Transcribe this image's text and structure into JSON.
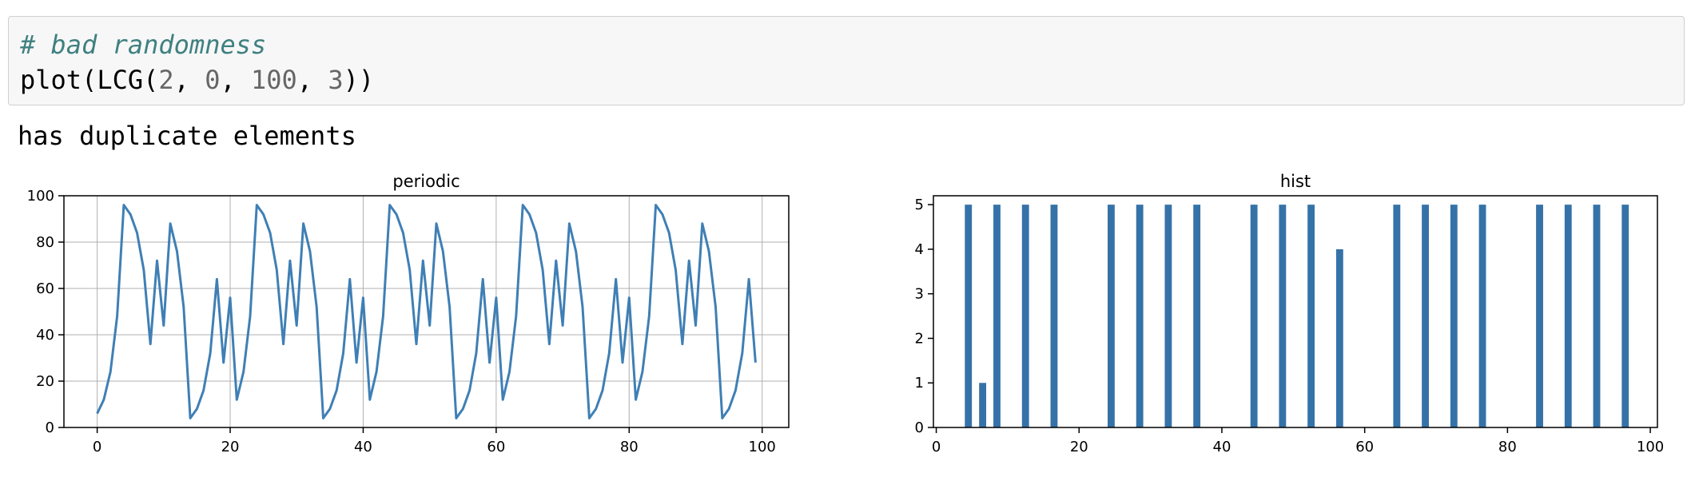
{
  "code": {
    "comment": "# bad randomness",
    "line2": {
      "func": "plot(LCG(",
      "a": "2",
      "sep1": ", ",
      "b": "0",
      "sep2": ", ",
      "c": "100",
      "sep3": ", ",
      "d": "3",
      "close": "))"
    }
  },
  "output": {
    "text": "has duplicate elements"
  },
  "colors": {
    "series": "#3f7fb5",
    "bar": "#3572a8",
    "grid": "#b0b0b0",
    "code_bg": "#f7f7f7",
    "comment": "#408080"
  },
  "chart_data": [
    {
      "type": "line",
      "title": "periodic",
      "xlabel": "",
      "ylabel": "",
      "xlim": [
        -5,
        104
      ],
      "ylim": [
        0,
        100
      ],
      "grid": true,
      "x_ticks": [
        0,
        20,
        40,
        60,
        80,
        100
      ],
      "y_ticks": [
        0,
        20,
        40,
        60,
        80,
        100
      ],
      "series": [
        {
          "x": [
            0,
            1,
            2,
            3,
            4,
            5,
            6,
            7,
            8,
            9,
            10,
            11,
            12,
            13,
            14,
            15,
            16,
            17,
            18,
            19,
            20,
            21,
            22,
            23,
            24,
            25,
            26,
            27,
            28,
            29,
            30,
            31,
            32,
            33,
            34,
            35,
            36,
            37,
            38,
            39,
            40,
            41,
            42,
            43,
            44,
            45,
            46,
            47,
            48,
            49,
            50,
            51,
            52,
            53,
            54,
            55,
            56,
            57,
            58,
            59,
            60,
            61,
            62,
            63,
            64,
            65,
            66,
            67,
            68,
            69,
            70,
            71,
            72,
            73,
            74,
            75,
            76,
            77,
            78,
            79,
            80,
            81,
            82,
            83,
            84,
            85,
            86,
            87,
            88,
            89,
            90,
            91,
            92,
            93,
            94,
            95,
            96,
            97,
            98,
            99
          ],
          "y": [
            6,
            12,
            24,
            48,
            96,
            92,
            84,
            68,
            36,
            72,
            44,
            88,
            76,
            52,
            4,
            8,
            16,
            32,
            64,
            28,
            56,
            12,
            24,
            48,
            96,
            92,
            84,
            68,
            36,
            72,
            44,
            88,
            76,
            52,
            4,
            8,
            16,
            32,
            64,
            28,
            56,
            12,
            24,
            48,
            96,
            92,
            84,
            68,
            36,
            72,
            44,
            88,
            76,
            52,
            4,
            8,
            16,
            32,
            64,
            28,
            56,
            12,
            24,
            48,
            96,
            92,
            84,
            68,
            36,
            72,
            44,
            88,
            76,
            52,
            4,
            8,
            16,
            32,
            64,
            28,
            56,
            12,
            24,
            48,
            96,
            92,
            84,
            68,
            36,
            72,
            44,
            88,
            76,
            52,
            4,
            8,
            16,
            32,
            64,
            28
          ]
        }
      ]
    },
    {
      "type": "bar",
      "title": "hist",
      "xlabel": "",
      "ylabel": "",
      "xlim": [
        -0.4,
        101
      ],
      "ylim": [
        0,
        5.2
      ],
      "grid": false,
      "x_ticks": [
        0,
        20,
        40,
        60,
        80,
        100
      ],
      "y_ticks": [
        0,
        1,
        2,
        3,
        4,
        5
      ],
      "bins": [
        {
          "x": 4,
          "count": 5
        },
        {
          "x": 6,
          "count": 1
        },
        {
          "x": 8,
          "count": 5
        },
        {
          "x": 12,
          "count": 5
        },
        {
          "x": 16,
          "count": 5
        },
        {
          "x": 24,
          "count": 5
        },
        {
          "x": 28,
          "count": 5
        },
        {
          "x": 32,
          "count": 5
        },
        {
          "x": 36,
          "count": 5
        },
        {
          "x": 44,
          "count": 5
        },
        {
          "x": 48,
          "count": 5
        },
        {
          "x": 52,
          "count": 5
        },
        {
          "x": 56,
          "count": 4
        },
        {
          "x": 64,
          "count": 5
        },
        {
          "x": 68,
          "count": 5
        },
        {
          "x": 72,
          "count": 5
        },
        {
          "x": 76,
          "count": 5
        },
        {
          "x": 84,
          "count": 5
        },
        {
          "x": 88,
          "count": 5
        },
        {
          "x": 92,
          "count": 5
        },
        {
          "x": 96,
          "count": 5
        }
      ],
      "bin_width": 0.99
    }
  ]
}
